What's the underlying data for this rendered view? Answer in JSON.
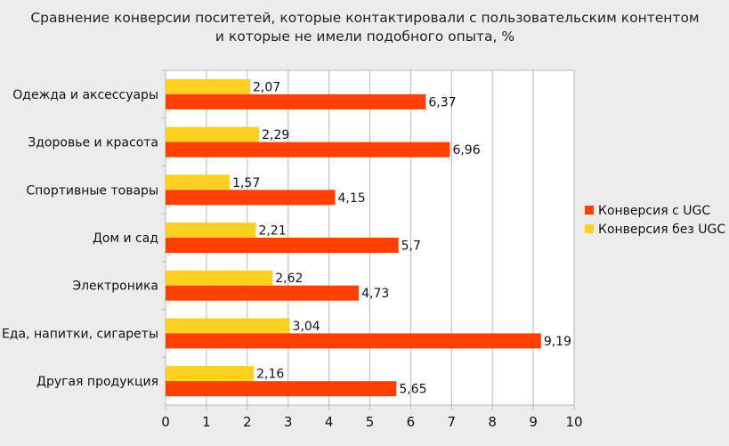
{
  "chart_data": {
    "type": "bar",
    "orientation": "horizontal",
    "title_lines": [
      "Сравнение конверсии поситетей, которые контактировали с пользовательским контентом",
      "и которые не имели подобного опыта, %"
    ],
    "categories": [
      "Одежда и аксессуары",
      "Здоровье и красота",
      "Спортивные товары",
      "Дом и сад",
      "Электроника",
      "Еда, напитки, сигареты",
      "Другая продукция"
    ],
    "series": [
      {
        "name": "Конверсия без UGC",
        "color": "#ffd020",
        "values": [
          2.07,
          2.29,
          1.57,
          2.21,
          2.62,
          3.04,
          2.16
        ],
        "labels": [
          "2,07",
          "2,29",
          "1,57",
          "2,21",
          "2,62",
          "3,04",
          "2,16"
        ]
      },
      {
        "name": "Конверсия с UGC",
        "color": "#ff4000",
        "values": [
          6.37,
          6.96,
          4.15,
          5.7,
          4.73,
          9.19,
          5.65
        ],
        "labels": [
          "6,37",
          "6,96",
          "4,15",
          "5,7",
          "4,73",
          "9,19",
          "5,65"
        ]
      }
    ],
    "xlim": [
      0,
      10
    ],
    "xticks": [
      "0",
      "1",
      "2",
      "3",
      "4",
      "5",
      "6",
      "7",
      "8",
      "9",
      "10"
    ],
    "grid": true,
    "legend_position": "right",
    "legend_order": [
      "Конверсия с UGC",
      "Конверсия без UGC"
    ]
  }
}
